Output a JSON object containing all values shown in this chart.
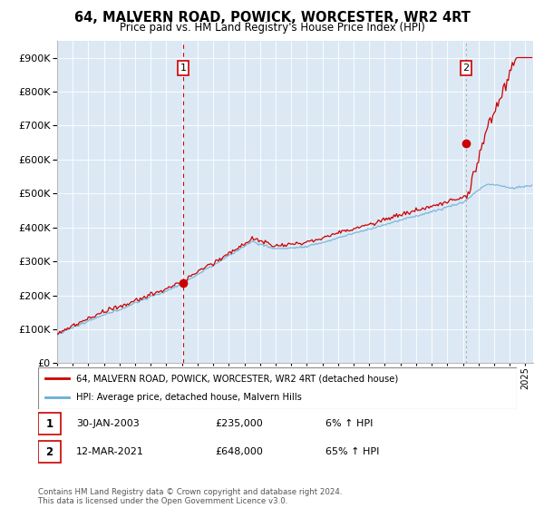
{
  "title": "64, MALVERN ROAD, POWICK, WORCESTER, WR2 4RT",
  "subtitle": "Price paid vs. HM Land Registry's House Price Index (HPI)",
  "legend_line1": "64, MALVERN ROAD, POWICK, WORCESTER, WR2 4RT (detached house)",
  "legend_line2": "HPI: Average price, detached house, Malvern Hills",
  "transaction1_date": "30-JAN-2003",
  "transaction1_price": "£235,000",
  "transaction1_hpi": "6% ↑ HPI",
  "transaction1_year": 2003.08,
  "transaction1_price_val": 235000,
  "transaction2_date": "12-MAR-2021",
  "transaction2_price": "£648,000",
  "transaction2_hpi": "65% ↑ HPI",
  "transaction2_year": 2021.21,
  "transaction2_price_val": 648000,
  "footnote": "Contains HM Land Registry data © Crown copyright and database right 2024.\nThis data is licensed under the Open Government Licence v3.0.",
  "hpi_color": "#6baed6",
  "price_color": "#cc0000",
  "chart_bg": "#dce9f5",
  "ylim_min": 0,
  "ylim_max": 950000,
  "xlim_min": 1995,
  "xlim_max": 2025.5
}
